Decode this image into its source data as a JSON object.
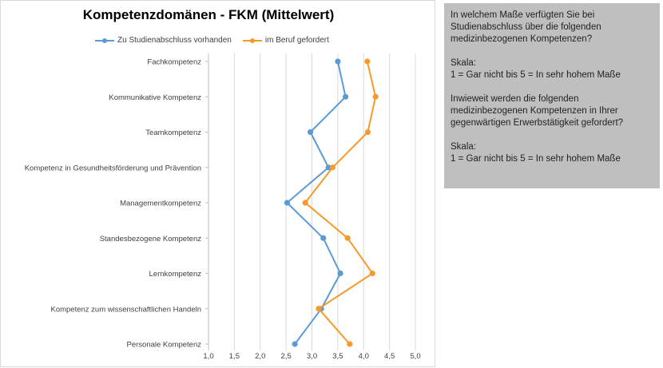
{
  "chart_data": {
    "type": "line",
    "title": "Kompetenzdomänen - FKM (Mittelwert)",
    "orientation": "horizontal",
    "categories": [
      "Fachkompetenz",
      "Kommunikative Kompetenz",
      "Teamkompetenz",
      "Kompetenz in Gesundheitsförderung und Prävention",
      "Managementkompetenz",
      "Standesbezogene Kompetenz",
      "Lernkompetenz",
      "Kompetenz zum wissenschaftlichen Handeln",
      "Personale Kompetenz"
    ],
    "series": [
      {
        "name": "Zu Studienabschluss vorhanden",
        "color": "#5b9bd5",
        "values": [
          3.5,
          3.65,
          2.97,
          3.32,
          2.52,
          3.22,
          3.55,
          3.18,
          2.67
        ]
      },
      {
        "name": "im Beruf gefordert",
        "color": "#f79a2a",
        "values": [
          4.07,
          4.23,
          4.08,
          3.4,
          2.87,
          3.69,
          4.17,
          3.13,
          3.73
        ]
      }
    ],
    "x_ticks": [
      "1,0",
      "1,5",
      "2,0",
      "2,5",
      "3,0",
      "3,5",
      "4,0",
      "4,5",
      "5,0"
    ],
    "xlim": [
      1.0,
      5.0
    ],
    "grid": true,
    "legend": "top"
  },
  "info_box": {
    "para1": "In welchem Maße verfügten Sie bei Studienabschluss über die folgenden medizinbezogenen Kompetenzen?",
    "scale1_label": "Skala:",
    "scale1_text": "1 = Gar nicht bis 5 = In sehr hohem Maße",
    "para2": "Inwieweit werden die folgenden medizinbezogenen Kompetenzen in Ihrer gegenwärtigen Erwerbstätigkeit gefordert?",
    "scale2_label": "Skala:",
    "scale2_text": "1 = Gar nicht bis 5 = In sehr hohem Maße"
  }
}
